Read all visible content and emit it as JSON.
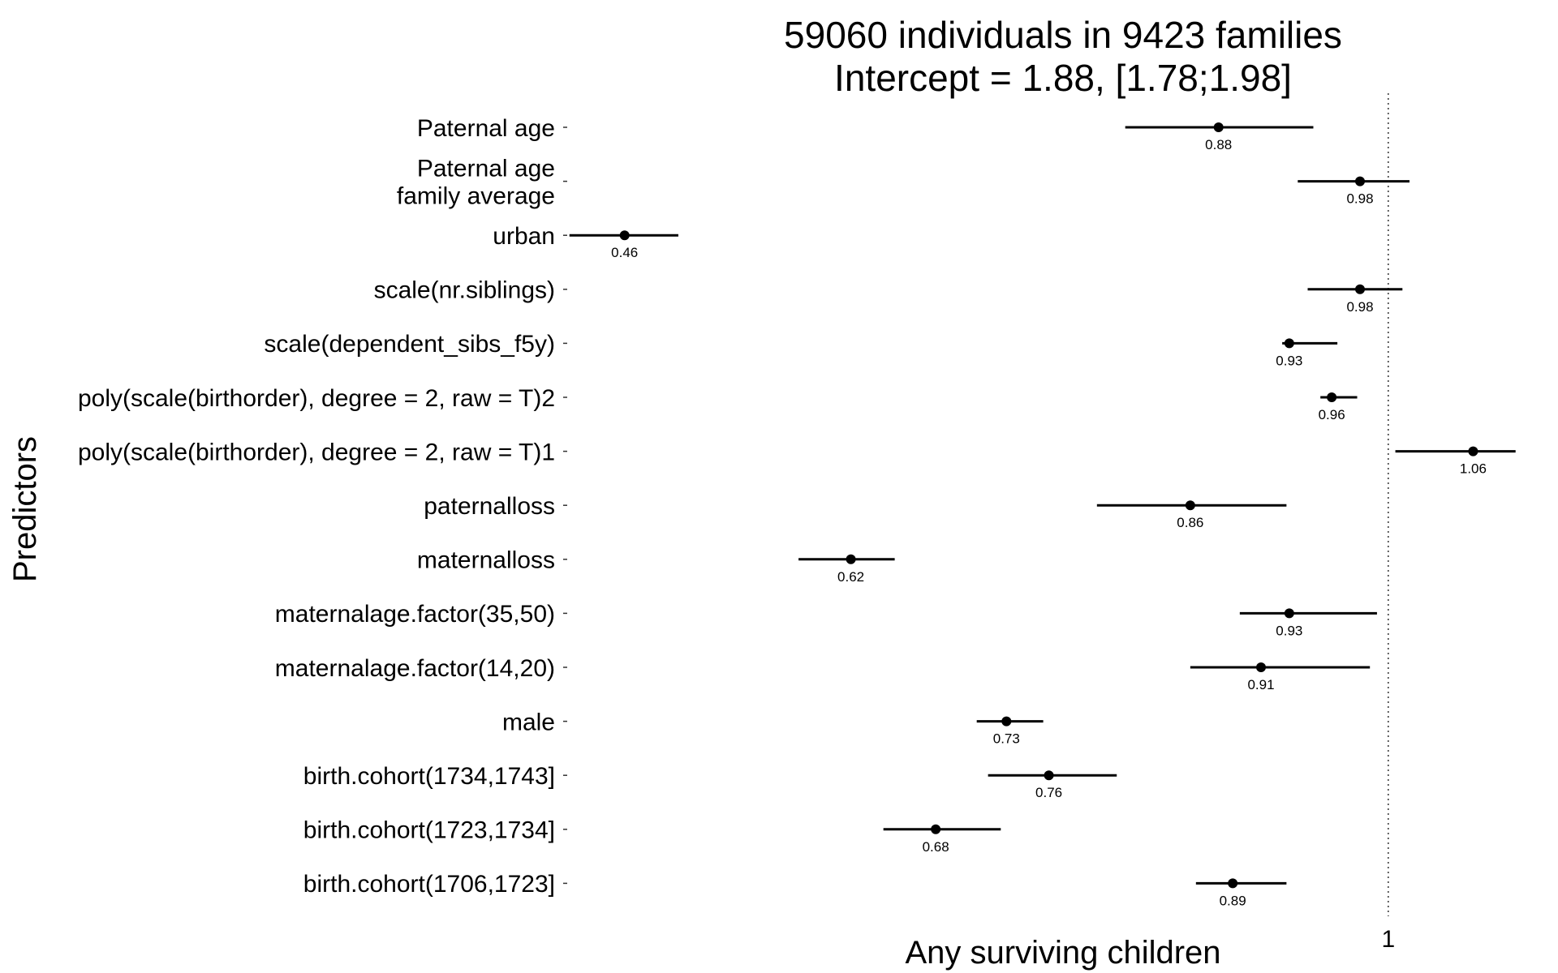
{
  "chart_data": {
    "type": "forest",
    "title_lines": [
      "59060 individuals in 9423 families",
      "Intercept = 1.88, [1.78;1.98]"
    ],
    "xlabel": "Any surviving children",
    "ylabel": "Predictors",
    "x_ticks": [
      "1"
    ],
    "xlim": [
      0.42,
      1.12
    ],
    "reference_line": 1,
    "grid": false,
    "predictors": [
      {
        "label": [
          "Paternal age"
        ],
        "estimate": 0.88,
        "label_text": "0.88",
        "ci": [
          0.814,
          0.947
        ]
      },
      {
        "label": [
          "Paternal age",
          "family average"
        ],
        "estimate": 0.98,
        "label_text": "0.98",
        "ci": [
          0.936,
          1.015
        ]
      },
      {
        "label": [
          "urban"
        ],
        "estimate": 0.46,
        "label_text": "0.46",
        "ci": [
          0.421,
          0.498
        ]
      },
      {
        "label": [
          "scale(nr.siblings)"
        ],
        "estimate": 0.98,
        "label_text": "0.98",
        "ci": [
          0.943,
          1.01
        ]
      },
      {
        "label": [
          "scale(dependent_sibs_f5y)"
        ],
        "estimate": 0.93,
        "label_text": "0.93",
        "ci": [
          0.925,
          0.964
        ]
      },
      {
        "label": [
          "poly(scale(birthorder), degree = 2, raw = T)2"
        ],
        "estimate": 0.96,
        "label_text": "0.96",
        "ci": [
          0.952,
          0.978
        ]
      },
      {
        "label": [
          "poly(scale(birthorder), degree = 2, raw = T)1"
        ],
        "estimate": 1.06,
        "label_text": "1.06",
        "ci": [
          1.005,
          1.09
        ]
      },
      {
        "label": [
          "paternalloss"
        ],
        "estimate": 0.86,
        "label_text": "0.86",
        "ci": [
          0.794,
          0.928
        ]
      },
      {
        "label": [
          "maternalloss"
        ],
        "estimate": 0.62,
        "label_text": "0.62",
        "ci": [
          0.583,
          0.651
        ]
      },
      {
        "label": [
          "maternalage.factor(35,50)"
        ],
        "estimate": 0.93,
        "label_text": "0.93",
        "ci": [
          0.895,
          0.992
        ]
      },
      {
        "label": [
          "maternalage.factor(14,20)"
        ],
        "estimate": 0.91,
        "label_text": "0.91",
        "ci": [
          0.86,
          0.987
        ]
      },
      {
        "label": [
          "male"
        ],
        "estimate": 0.73,
        "label_text": "0.73",
        "ci": [
          0.709,
          0.756
        ]
      },
      {
        "label": [
          "birth.cohort(1734,1743]"
        ],
        "estimate": 0.76,
        "label_text": "0.76",
        "ci": [
          0.717,
          0.808
        ]
      },
      {
        "label": [
          "birth.cohort(1723,1734]"
        ],
        "estimate": 0.68,
        "label_text": "0.68",
        "ci": [
          0.643,
          0.726
        ]
      },
      {
        "label": [
          "birth.cohort(1706,1723]"
        ],
        "estimate": 0.89,
        "label_text": "0.89",
        "ci": [
          0.864,
          0.928
        ]
      }
    ]
  }
}
